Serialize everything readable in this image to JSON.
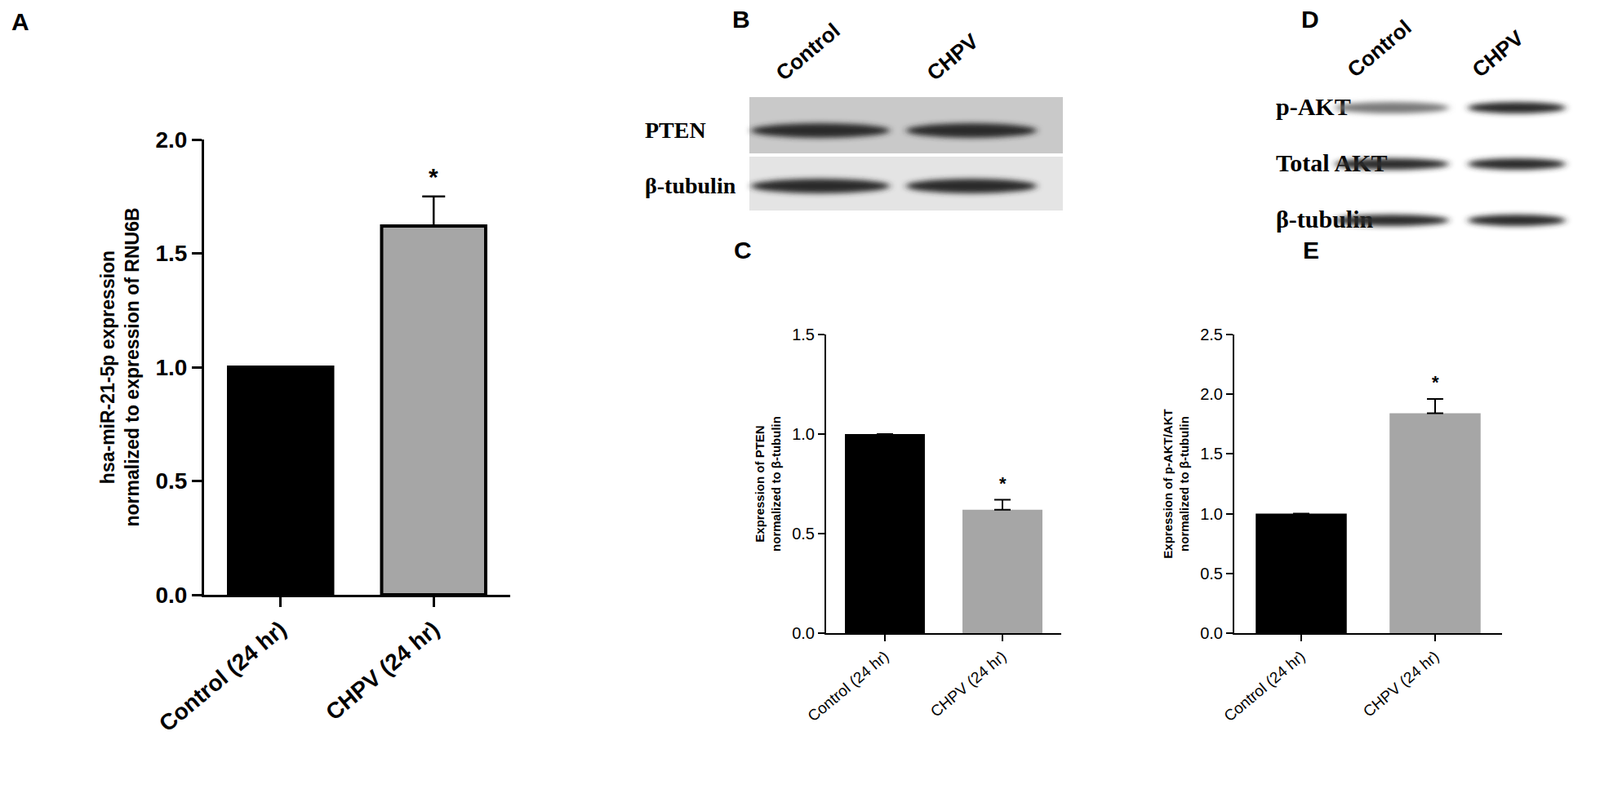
{
  "chart_data": [
    {
      "type": "bar",
      "annotations": [
        {
          "text": "A"
        },
        {
          "text": "*",
          "category": "CHPV (24 hr)"
        }
      ],
      "ylabel": "hsa-miR-21-5p expression\nnormalized to expression of RNU6B",
      "categories": [
        "Control (24 hr)",
        "CHPV (24 hr)"
      ],
      "values": [
        1.0,
        1.62
      ],
      "errors": [
        null,
        0.13
      ],
      "colors": [
        "#000000",
        "#a6a6a6"
      ],
      "ylim": [
        0,
        2.0
      ],
      "yticks": [
        {
          "value": 0,
          "label": "0.0"
        },
        0.5,
        {
          "value": 1,
          "label": "1.0"
        },
        1.5,
        {
          "value": 2,
          "label": "2.0"
        }
      ],
      "grid": false
    },
    {
      "type": "bar",
      "annotations": [
        {
          "text": "C"
        },
        {
          "text": "*",
          "category": "CHPV (24 hr)"
        }
      ],
      "ylabel": "Expression of PTEN\nnormalized to β-tubulin",
      "categories": [
        "Control (24 hr)",
        "CHPV (24 hr)"
      ],
      "values": [
        1.0,
        0.62
      ],
      "errors": [
        null,
        0.05
      ],
      "colors": [
        "#000000",
        "#a6a6a6"
      ],
      "ylim": [
        0,
        1.5
      ],
      "yticks": [
        {
          "value": 0,
          "label": "0.0"
        },
        0.5,
        {
          "value": 1,
          "label": "1.0"
        },
        1.5
      ],
      "grid": false
    },
    {
      "type": "bar",
      "annotations": [
        {
          "text": "E"
        },
        {
          "text": "*",
          "category": "CHPV (24 hr)"
        }
      ],
      "ylabel": "Expression of p-AKT/AKT\nnormalized to β-tubulin",
      "categories": [
        "Control (24 hr)",
        "CHPV (24 hr)"
      ],
      "values": [
        1.0,
        1.84
      ],
      "errors": [
        null,
        0.12
      ],
      "colors": [
        "#000000",
        "#a6a6a6"
      ],
      "ylim": [
        0,
        2.5
      ],
      "yticks": [
        {
          "value": 0,
          "label": "0.0"
        },
        0.5,
        {
          "value": 1,
          "label": "1.0"
        },
        1.5,
        {
          "value": 2,
          "label": "2.0"
        },
        2.5
      ],
      "grid": false
    }
  ],
  "blots": [
    {
      "annotations": [
        {
          "text": "B"
        }
      ],
      "lanes": [
        "Control",
        "CHPV"
      ],
      "rows": [
        "PTEN",
        "β-tubulin"
      ]
    },
    {
      "annotations": [
        {
          "text": "D"
        }
      ],
      "lanes": [
        "Control",
        "CHPV"
      ],
      "rows": [
        "p-AKT",
        "Total AKT",
        "β-tubulin"
      ]
    }
  ]
}
